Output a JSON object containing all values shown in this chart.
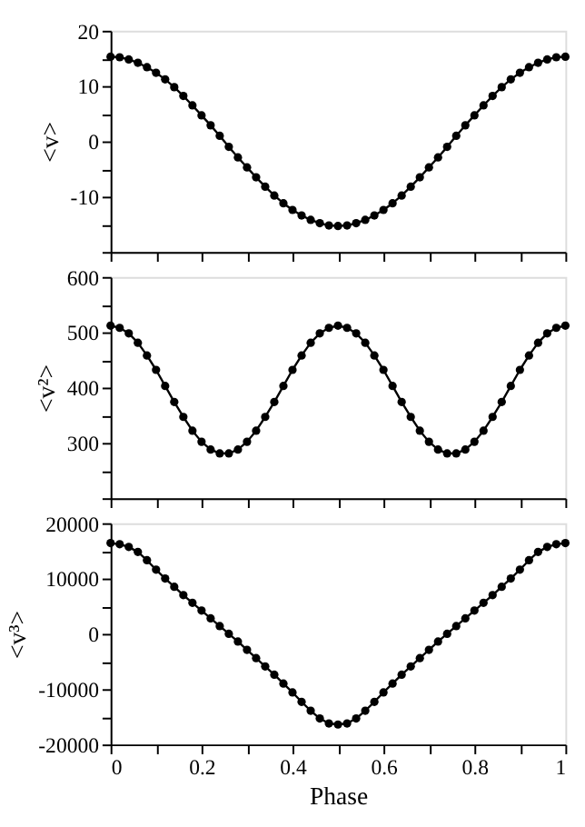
{
  "chart_data": [
    {
      "type": "line",
      "ylabel": "<v>",
      "marker": "circle",
      "line_style": "solid",
      "grid": false,
      "tick_labels": "y",
      "x": [
        0,
        0.02,
        0.04,
        0.06,
        0.08,
        0.1,
        0.12,
        0.14,
        0.16,
        0.18,
        0.2,
        0.22,
        0.24,
        0.26,
        0.28,
        0.3,
        0.32,
        0.34,
        0.36,
        0.38,
        0.4,
        0.42,
        0.44,
        0.46,
        0.48,
        0.5,
        0.52,
        0.54,
        0.56,
        0.58,
        0.6,
        0.62,
        0.64,
        0.66,
        0.68,
        0.7,
        0.72,
        0.74,
        0.76,
        0.78,
        0.8,
        0.82,
        0.84,
        0.86,
        0.88,
        0.9,
        0.92,
        0.94,
        0.96,
        0.98,
        1
      ],
      "xlim": [
        0,
        1
      ],
      "xticks": [
        0,
        {
          "value": 0.1,
          "label": null
        },
        0.2,
        {
          "value": 0.3,
          "label": null
        },
        0.4,
        {
          "value": 0.5,
          "label": null
        },
        0.6,
        {
          "value": 0.7,
          "label": null
        },
        0.8,
        {
          "value": 0.9,
          "label": null
        },
        1
      ],
      "ylim": [
        -20,
        20
      ],
      "yticks": [
        {
          "value": -20,
          "label": null
        },
        {
          "value": -15,
          "label": null
        },
        -10,
        {
          "value": -5,
          "label": null
        },
        0,
        {
          "value": 5,
          "label": null
        },
        10,
        {
          "value": 15,
          "label": null
        },
        20
      ],
      "series": [
        {
          "color": "#000000",
          "values": [
            15.3,
            15.2,
            14.8,
            14.2,
            13.4,
            12.4,
            11.2,
            9.8,
            8.2,
            6.5,
            4.7,
            2.9,
            1.0,
            -1.0,
            -2.9,
            -4.7,
            -6.5,
            -8.2,
            -9.8,
            -11.2,
            -12.4,
            -13.4,
            -14.2,
            -14.8,
            -15.2,
            -15.3,
            -15.2,
            -14.8,
            -14.2,
            -13.4,
            -12.4,
            -11.2,
            -9.8,
            -8.2,
            -6.5,
            -4.7,
            -2.9,
            -1.0,
            1.0,
            2.9,
            4.7,
            6.5,
            8.2,
            9.8,
            11.2,
            12.4,
            13.4,
            14.2,
            14.8,
            15.2,
            15.3
          ]
        }
      ]
    },
    {
      "type": "line",
      "ylabel": "<v²>",
      "marker": "circle",
      "line_style": "solid",
      "grid": false,
      "tick_labels": "y",
      "x": [
        0,
        0.02,
        0.04,
        0.06,
        0.08,
        0.1,
        0.12,
        0.14,
        0.16,
        0.18,
        0.2,
        0.22,
        0.24,
        0.26,
        0.28,
        0.3,
        0.32,
        0.34,
        0.36,
        0.38,
        0.4,
        0.42,
        0.44,
        0.46,
        0.48,
        0.5,
        0.52,
        0.54,
        0.56,
        0.58,
        0.6,
        0.62,
        0.64,
        0.66,
        0.68,
        0.7,
        0.72,
        0.74,
        0.76,
        0.78,
        0.8,
        0.82,
        0.84,
        0.86,
        0.88,
        0.9,
        0.92,
        0.94,
        0.96,
        0.98,
        1
      ],
      "xlim": [
        0,
        1
      ],
      "xticks": [
        0,
        {
          "value": 0.1,
          "label": null
        },
        0.2,
        {
          "value": 0.3,
          "label": null
        },
        0.4,
        {
          "value": 0.5,
          "label": null
        },
        0.6,
        {
          "value": 0.7,
          "label": null
        },
        0.8,
        {
          "value": 0.9,
          "label": null
        },
        1
      ],
      "ylim": [
        200,
        600
      ],
      "yticks": [
        {
          "value": 200,
          "label": null
        },
        {
          "value": 250,
          "label": null
        },
        300,
        {
          "value": 350,
          "label": null
        },
        400,
        {
          "value": 450,
          "label": null
        },
        500,
        {
          "value": 550,
          "label": null
        },
        600
      ],
      "series": [
        {
          "color": "#000000",
          "values": [
            512,
            508,
            498,
            481,
            458,
            432,
            403,
            374,
            347,
            322,
            302,
            288,
            281,
            281,
            288,
            302,
            322,
            347,
            374,
            403,
            432,
            458,
            481,
            498,
            508,
            512,
            508,
            498,
            481,
            458,
            432,
            403,
            374,
            347,
            322,
            302,
            288,
            281,
            281,
            288,
            302,
            322,
            347,
            374,
            403,
            432,
            458,
            481,
            498,
            508,
            512
          ]
        }
      ]
    },
    {
      "type": "line",
      "xlabel": "Phase",
      "ylabel": "<v³>",
      "marker": "circle",
      "line_style": "solid",
      "grid": false,
      "x": [
        0,
        0.02,
        0.04,
        0.06,
        0.08,
        0.1,
        0.12,
        0.14,
        0.16,
        0.18,
        0.2,
        0.22,
        0.24,
        0.26,
        0.28,
        0.3,
        0.32,
        0.34,
        0.36,
        0.38,
        0.4,
        0.42,
        0.44,
        0.46,
        0.48,
        0.5,
        0.52,
        0.54,
        0.56,
        0.58,
        0.6,
        0.62,
        0.64,
        0.66,
        0.68,
        0.7,
        0.72,
        0.74,
        0.76,
        0.78,
        0.8,
        0.82,
        0.84,
        0.86,
        0.88,
        0.9,
        0.92,
        0.94,
        0.96,
        0.98,
        1
      ],
      "xlim": [
        0,
        1
      ],
      "xticks": [
        0,
        {
          "value": 0.1,
          "label": null
        },
        0.2,
        {
          "value": 0.3,
          "label": null
        },
        0.4,
        {
          "value": 0.5,
          "label": null
        },
        0.6,
        {
          "value": 0.7,
          "label": null
        },
        0.8,
        {
          "value": 0.9,
          "label": null
        },
        1
      ],
      "ylim": [
        -20000,
        20000
      ],
      "yticks": [
        -20000,
        {
          "value": -15000,
          "label": null
        },
        -10000,
        {
          "value": -5000,
          "label": null
        },
        0,
        {
          "value": 5000,
          "label": null
        },
        10000,
        {
          "value": 15000,
          "label": null
        },
        20000
      ],
      "series": [
        {
          "color": "#000000",
          "values": [
            16400,
            16200,
            15700,
            14800,
            13300,
            11600,
            10000,
            8500,
            7000,
            5600,
            4200,
            2800,
            1400,
            0,
            -1400,
            -2900,
            -4400,
            -5900,
            -7400,
            -9000,
            -10600,
            -12300,
            -13900,
            -15300,
            -16200,
            -16400,
            -16200,
            -15300,
            -13900,
            -12300,
            -10600,
            -9000,
            -7400,
            -5900,
            -4400,
            -2900,
            -1400,
            0,
            1400,
            2800,
            4200,
            5600,
            7000,
            8500,
            10000,
            11600,
            13300,
            14800,
            15700,
            16200,
            16400
          ]
        }
      ]
    }
  ]
}
